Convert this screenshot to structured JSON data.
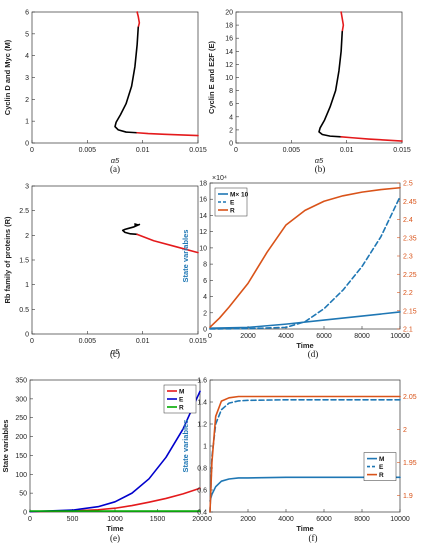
{
  "figure": {
    "panels": [
      {
        "caption": "(a)"
      },
      {
        "caption": "(b)"
      },
      {
        "caption": "(c)"
      },
      {
        "caption": "(d)"
      },
      {
        "caption": "(e)"
      },
      {
        "caption": "(f)"
      }
    ]
  },
  "colors": {
    "stable": "#e41a1c",
    "unstable": "#000000",
    "M": "#1f77b4",
    "E": "#1f77b4",
    "R": "#d95319",
    "e_M": "#e41a1c",
    "e_E": "#0000cc",
    "e_R": "#00aa00"
  },
  "chart_data": [
    {
      "type": "line",
      "xlabel": "α5",
      "ylabel": "Cyclin D and Myc (M)",
      "xlim": [
        0,
        0.015
      ],
      "ylim": [
        0,
        6
      ],
      "xticks": [
        "0",
        "0.005",
        "0.01",
        "0.015"
      ],
      "yticks": [
        "0",
        "1",
        "2",
        "3",
        "4",
        "5",
        "6"
      ],
      "grid": false,
      "series": [
        {
          "style": "stable",
          "x": [
            0.0095,
            0.0096,
            0.0097,
            0.0096
          ],
          "y": [
            6.0,
            5.8,
            5.5,
            5.3
          ]
        },
        {
          "style": "unstable",
          "x": [
            0.0096,
            0.0095,
            0.0093,
            0.009,
            0.0085,
            0.008,
            0.0076,
            0.0075,
            0.0078,
            0.0085,
            0.0095
          ],
          "y": [
            5.3,
            4.5,
            3.5,
            2.6,
            1.8,
            1.3,
            0.95,
            0.75,
            0.6,
            0.5,
            0.47
          ]
        },
        {
          "style": "stable",
          "x": [
            0.0095,
            0.0105,
            0.012,
            0.0135,
            0.015
          ],
          "y": [
            0.47,
            0.43,
            0.4,
            0.37,
            0.34
          ]
        }
      ]
    },
    {
      "type": "line",
      "xlabel": "α5",
      "ylabel": "Cyclin E and E2F (E)",
      "xlim": [
        0,
        0.015
      ],
      "ylim": [
        0,
        20
      ],
      "xticks": [
        "0",
        "0.005",
        "0.01",
        "0.015"
      ],
      "yticks": [
        "0",
        "2",
        "4",
        "6",
        "8",
        "10",
        "12",
        "14",
        "16",
        "18",
        "20"
      ],
      "grid": false,
      "series": [
        {
          "style": "stable",
          "x": [
            0.0095,
            0.0096,
            0.0097,
            0.0096
          ],
          "y": [
            20.0,
            19.0,
            18.0,
            17.0
          ]
        },
        {
          "style": "unstable",
          "x": [
            0.0096,
            0.0095,
            0.0093,
            0.009,
            0.0085,
            0.008,
            0.0076,
            0.0075,
            0.0078,
            0.0085,
            0.0095
          ],
          "y": [
            17.0,
            14.0,
            11.0,
            8.0,
            5.5,
            3.5,
            2.3,
            1.7,
            1.3,
            1.05,
            0.95
          ]
        },
        {
          "style": "stable",
          "x": [
            0.0095,
            0.0105,
            0.012,
            0.0135,
            0.015
          ],
          "y": [
            0.95,
            0.8,
            0.6,
            0.45,
            0.3
          ]
        }
      ]
    },
    {
      "type": "line",
      "xlabel": "α5",
      "ylabel": "Rb family of proteins (R)",
      "xlim": [
        0,
        0.015
      ],
      "ylim": [
        0,
        3
      ],
      "xticks": [
        "0",
        "0.005",
        "0.01",
        "0.015"
      ],
      "yticks": [
        "0",
        "0.5",
        "1",
        "1.5",
        "2",
        "2.5",
        "3"
      ],
      "grid": false,
      "series": [
        {
          "style": "unstable",
          "x": [
            0.0097,
            0.0092,
            0.0087,
            0.0084,
            0.0082,
            0.0084,
            0.0089,
            0.0095
          ],
          "y": [
            2.22,
            2.17,
            2.14,
            2.12,
            2.1,
            2.06,
            2.03,
            2.02
          ]
        },
        {
          "style": "stable",
          "x": [
            0.0095,
            0.011,
            0.013,
            0.015
          ],
          "y": [
            2.02,
            1.89,
            1.77,
            1.65
          ]
        }
      ]
    },
    {
      "type": "line",
      "xlabel": "Time",
      "ylabel": "State variables",
      "xlim": [
        0,
        10000
      ],
      "ylim": [
        0,
        18
      ],
      "y2lim": [
        2.1,
        2.5
      ],
      "exponent_label": "×10⁴",
      "xticks": [
        "0",
        "2000",
        "4000",
        "6000",
        "8000",
        "10000"
      ],
      "yticks": [
        "0",
        "2",
        "4",
        "6",
        "8",
        "10",
        "12",
        "14",
        "16",
        "18"
      ],
      "y2ticks": [
        "2.1",
        "2.15",
        "2.2",
        "2.25",
        "2.3",
        "2.35",
        "2.4",
        "2.45",
        "2.5"
      ],
      "legend": "top-left",
      "series": [
        {
          "name": "M× 10",
          "axis": "left",
          "style": "solid",
          "color": "#1f77b4",
          "x": [
            0,
            2000,
            4000,
            6000,
            8000,
            10000
          ],
          "y": [
            0.1,
            0.2,
            0.6,
            1.1,
            1.6,
            2.1
          ]
        },
        {
          "name": "E",
          "axis": "left",
          "style": "dashed",
          "color": "#1f77b4",
          "x": [
            0,
            2000,
            4000,
            5000,
            6000,
            7000,
            8000,
            9000,
            10000
          ],
          "y": [
            0,
            0.05,
            0.2,
            0.9,
            2.5,
            4.8,
            7.7,
            11.4,
            16.3
          ]
        },
        {
          "name": "R",
          "axis": "right",
          "style": "solid",
          "color": "#d95319",
          "x": [
            0,
            500,
            1000,
            2000,
            3000,
            4000,
            5000,
            6000,
            7000,
            8000,
            9000,
            10000
          ],
          "y": [
            2.105,
            2.13,
            2.16,
            2.225,
            2.31,
            2.385,
            2.425,
            2.45,
            2.465,
            2.475,
            2.482,
            2.487
          ]
        }
      ]
    },
    {
      "type": "line",
      "xlabel": "Time",
      "ylabel": "State variables",
      "xlim": [
        0,
        2000
      ],
      "ylim": [
        0,
        350
      ],
      "xticks": [
        "0",
        "500",
        "1000",
        "1500",
        "2000"
      ],
      "yticks": [
        "0",
        "50",
        "100",
        "150",
        "200",
        "250",
        "300",
        "350"
      ],
      "legend": "top-right",
      "series": [
        {
          "name": "M",
          "color": "#e41a1c",
          "x": [
            0,
            500,
            800,
            1000,
            1200,
            1400,
            1600,
            1800,
            2000
          ],
          "y": [
            1,
            3,
            6,
            10,
            17,
            26,
            36,
            48,
            63
          ]
        },
        {
          "name": "E",
          "color": "#0000cc",
          "x": [
            0,
            500,
            800,
            1000,
            1200,
            1400,
            1600,
            1800,
            2000
          ],
          "y": [
            1,
            5,
            14,
            27,
            50,
            88,
            145,
            220,
            320
          ]
        },
        {
          "name": "R",
          "color": "#00aa00",
          "x": [
            0,
            500,
            1000,
            1500,
            2000
          ],
          "y": [
            2.5,
            2.5,
            2.5,
            2.5,
            2.5
          ]
        }
      ]
    },
    {
      "type": "line",
      "xlabel": "Time",
      "ylabel": "State variables",
      "xlim": [
        0,
        10000
      ],
      "ylim": [
        0.4,
        1.6
      ],
      "y2lim": [
        1.875,
        2.075
      ],
      "xticks": [
        "0",
        "2000",
        "4000",
        "6000",
        "8000",
        "10000"
      ],
      "yticks": [
        "0.4",
        "0.6",
        "0.8",
        "1",
        "1.2",
        "1.4",
        "1.6"
      ],
      "y2ticks": [
        "1.9",
        "1.95",
        "2",
        "2.05"
      ],
      "legend": "center-right",
      "series": [
        {
          "name": "M",
          "axis": "left",
          "style": "solid",
          "color": "#1f77b4",
          "x": [
            0,
            100,
            300,
            600,
            1000,
            1500,
            2000,
            4000,
            10000
          ],
          "y": [
            0.5,
            0.56,
            0.63,
            0.68,
            0.7,
            0.71,
            0.71,
            0.715,
            0.715
          ]
        },
        {
          "name": "E",
          "axis": "left",
          "style": "dashed",
          "color": "#1f77b4",
          "x": [
            0,
            100,
            300,
            600,
            1000,
            1500,
            2000,
            4000,
            10000
          ],
          "y": [
            0.4,
            0.9,
            1.2,
            1.33,
            1.39,
            1.41,
            1.415,
            1.42,
            1.42
          ]
        },
        {
          "name": "R",
          "axis": "right",
          "style": "solid",
          "color": "#d95319",
          "x": [
            0,
            100,
            300,
            600,
            1000,
            1500,
            2000,
            4000,
            10000
          ],
          "y": [
            1.875,
            1.95,
            2.02,
            2.043,
            2.048,
            2.05,
            2.05,
            2.05,
            2.05
          ]
        }
      ]
    }
  ]
}
